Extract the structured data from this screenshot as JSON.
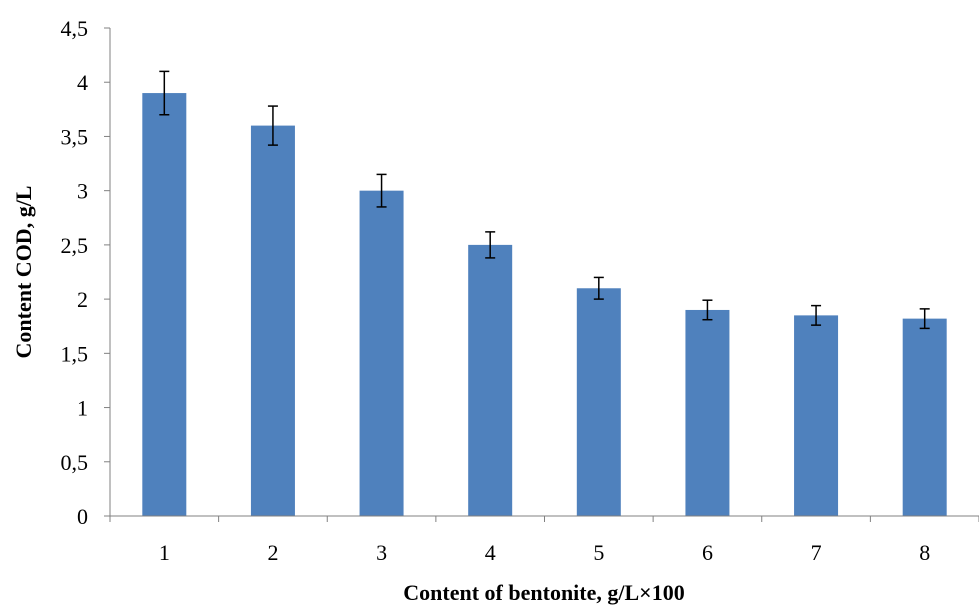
{
  "chart_data": {
    "type": "bar",
    "title": "",
    "xlabel": "Content of bentonite, g/L×100",
    "ylabel": "Content COD, g/L",
    "categories": [
      "1",
      "2",
      "3",
      "4",
      "5",
      "6",
      "7",
      "8"
    ],
    "values": [
      3.9,
      3.6,
      3.0,
      2.5,
      2.1,
      1.9,
      1.85,
      1.82
    ],
    "error": [
      0.2,
      0.18,
      0.15,
      0.12,
      0.1,
      0.09,
      0.09,
      0.09
    ],
    "ylim": [
      0,
      4.5
    ],
    "yticks": [
      "0",
      "0,5",
      "1",
      "1,5",
      "2",
      "2,5",
      "3",
      "3,5",
      "4",
      "4,5"
    ],
    "grid": false,
    "legend": "none",
    "colors": {
      "bar": "#4f81bd",
      "axis": "#808080",
      "error_bar": "#000000"
    }
  }
}
